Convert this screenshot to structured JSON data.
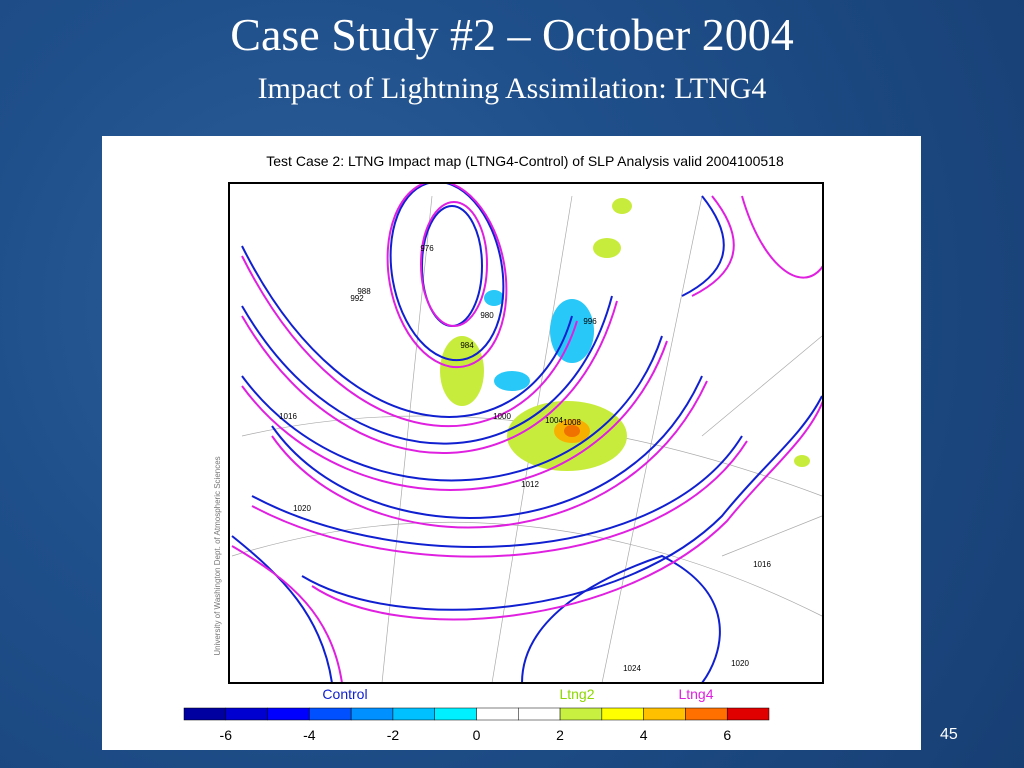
{
  "header": {
    "title": "Case Study #2 – October 2004",
    "subtitle": "Impact of Lightning Assimilation: LTNG4"
  },
  "figure": {
    "title": "Test Case 2: LTNG Impact map (LTNG4-Control) of SLP Analysis valid 2004100518",
    "credit": "University of Washington Dept. of Atmospheric Sciences",
    "legend": [
      "Control",
      "Ltng2",
      "Ltng4"
    ],
    "contour_labels": [
      "976",
      "980",
      "984",
      "988",
      "992",
      "996",
      "1000",
      "1004",
      "1008",
      "1012",
      "1016",
      "1020",
      "1024",
      "1016",
      "1020"
    ],
    "colorbar_ticks": [
      -6,
      -4,
      -2,
      0,
      2,
      4,
      6
    ]
  },
  "page_number": 45
}
